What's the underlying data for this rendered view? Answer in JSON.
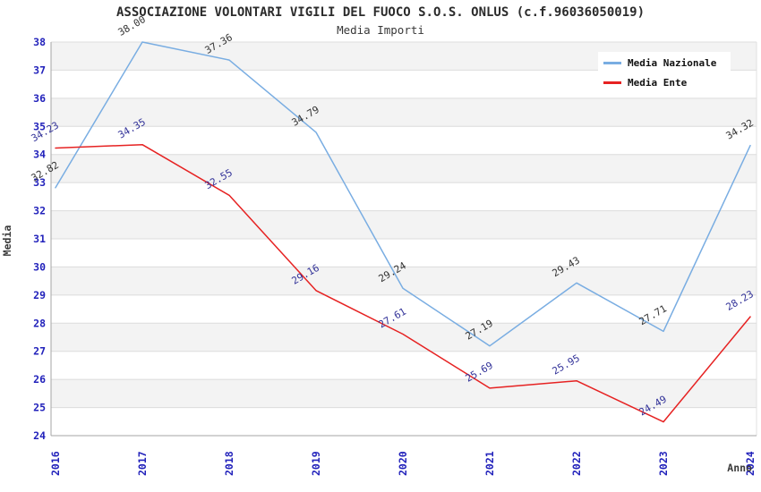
{
  "header": {
    "title": "ASSOCIAZIONE VOLONTARI VIGILI DEL FUOCO S.O.S. ONLUS (c.f.96036050019)",
    "subtitle": "Media Importi"
  },
  "chart_data": {
    "type": "line",
    "title": "ASSOCIAZIONE VOLONTARI VIGILI DEL FUOCO S.O.S. ONLUS (c.f.96036050019)",
    "subtitle": "Media Importi",
    "xlabel": "Anno",
    "ylabel": "Media",
    "categories": [
      "2016",
      "2017",
      "2018",
      "2019",
      "2020",
      "2021",
      "2022",
      "2023",
      "2024"
    ],
    "series": [
      {
        "name": "Media Nazionale",
        "color": "#79ade2",
        "label_color": "#333333",
        "values": [
          32.82,
          38.0,
          37.36,
          34.79,
          29.24,
          27.19,
          29.43,
          27.71,
          34.32
        ]
      },
      {
        "name": "Media Ente",
        "color": "#e62222",
        "label_color": "#333399",
        "values": [
          34.23,
          34.35,
          32.55,
          29.16,
          27.61,
          25.69,
          25.95,
          24.49,
          28.23
        ]
      }
    ],
    "ylim": [
      24,
      38
    ],
    "ytick_step": 1,
    "grid": true,
    "legend_position": "top-right",
    "colors": {
      "tick_label": "#2222bb",
      "grid_line": "#dcdcdc",
      "band_fill": "#f3f3f3",
      "axis_line": "#a6a6a6",
      "plot_border": "#e0e0e0"
    }
  }
}
